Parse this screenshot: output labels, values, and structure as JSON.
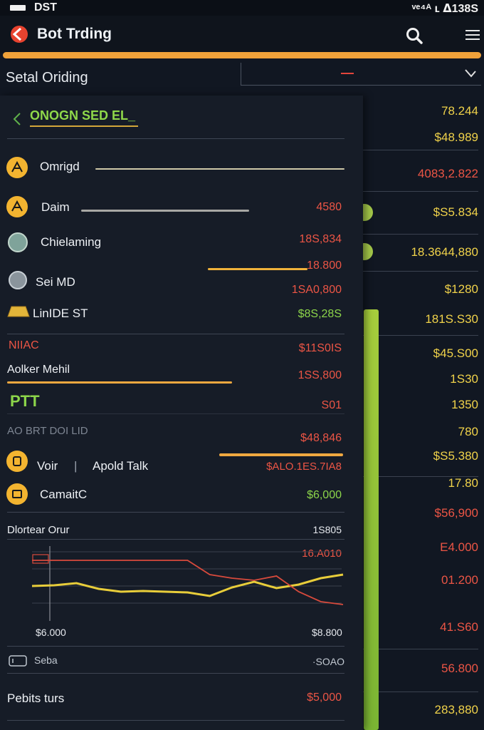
{
  "status": {
    "left": "DST",
    "right": "ᵛᵉ⁴ᴬ ʟ ᐃ138S"
  },
  "header": {
    "title": "Bot Trding"
  },
  "section": {
    "title": "Setal Oriding"
  },
  "panel": {
    "header": "ONOGN SED EL_",
    "rows": [
      {
        "label": "Omrigd",
        "value": ""
      },
      {
        "label": "Daim",
        "value": "4580"
      },
      {
        "label": "Chielaming",
        "value": "18S,834"
      },
      {
        "label": "Sei MD",
        "value": "18.800",
        "value2": "1SA0,800"
      },
      {
        "label": "LinIDE ST",
        "value": "$8S,28S"
      }
    ],
    "nuac": {
      "label": "NIIAC",
      "value": "$11S0IS"
    },
    "aolker": {
      "label": "Aolker Mehil",
      "value": "1SS,800"
    },
    "ptt": {
      "label": "PTT",
      "value": "S01"
    },
    "aobrt": {
      "label": "AO BRT DOI LID",
      "value": "$48,846"
    },
    "voir": {
      "label": "Voir",
      "divider": "|",
      "label2": "Apold Talk",
      "value": "$ALO.1ES.7IA8"
    },
    "camait": {
      "label": "CamaitC",
      "value": "$6,000"
    },
    "chart": {
      "title": "Dlortear Orur",
      "value": "1S805",
      "value2": "16.A010",
      "x_start": "$6.000",
      "x_end": "$8.800"
    },
    "seba": {
      "label": "Seba",
      "value": "·SOAO"
    },
    "pebits": {
      "label": "Pebits turs",
      "value": "$5,000"
    }
  },
  "right_values": [
    {
      "text": "78.244",
      "color": "yellow"
    },
    {
      "text": "$48.989",
      "color": "yellow"
    },
    {
      "text": "4083,2.822",
      "color": "red"
    },
    {
      "text": "$S5.834",
      "color": "yellow"
    },
    {
      "text": "18.3644,880",
      "color": "yellow"
    },
    {
      "text": "$1280",
      "color": "yellow"
    },
    {
      "text": "181S.S30",
      "color": "yellow"
    },
    {
      "text": "$45.S00",
      "color": "yellow"
    },
    {
      "text": "1S30",
      "color": "yellow"
    },
    {
      "text": "1350",
      "color": "yellow"
    },
    {
      "text": "780",
      "color": "yellow"
    },
    {
      "text": "$S5.380",
      "color": "yellow"
    },
    {
      "text": "17.80",
      "color": "yellow"
    },
    {
      "text": "$56,900",
      "color": "red"
    },
    {
      "text": "E4.000",
      "color": "red"
    },
    {
      "text": "01.200",
      "color": "red"
    },
    {
      "text": "41.S60",
      "color": "red"
    },
    {
      "text": "56.800",
      "color": "red"
    },
    {
      "text": "283,880",
      "color": "yellow"
    }
  ],
  "chart_data": {
    "type": "line",
    "title": "Dlortear Orur",
    "x_range": [
      "$6.000",
      "$8.800"
    ],
    "series": [
      {
        "name": "yellow",
        "values": [
          44,
          45,
          48,
          40,
          36,
          37,
          36,
          35,
          30,
          42,
          50,
          41,
          46,
          55,
          60
        ]
      },
      {
        "name": "red",
        "values": [
          80,
          80,
          80,
          80,
          80,
          80,
          80,
          80,
          60,
          55,
          52,
          58,
          36,
          22,
          18
        ]
      }
    ]
  }
}
